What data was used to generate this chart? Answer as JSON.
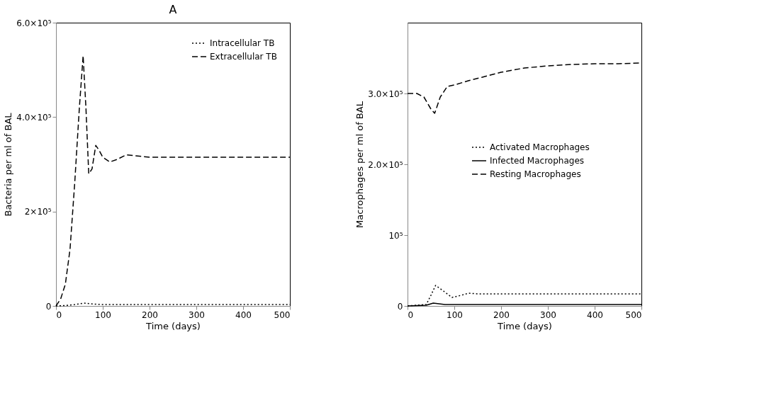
{
  "chart_data": [
    {
      "type": "line",
      "title": "A",
      "xlabel": "Time (days)",
      "ylabel": "Bacteria per ml of BAL",
      "xlim": [
        0,
        500
      ],
      "xticks": [
        0,
        100,
        200,
        300,
        400,
        500
      ],
      "ylim": [
        0,
        600000
      ],
      "yticks": [
        0,
        {
          "value": 200000,
          "label": "2×10⁵"
        },
        {
          "value": 400000,
          "label": "4.0×10⁵"
        },
        {
          "value": 600000,
          "label": "6.0×10⁵"
        }
      ],
      "grid": false,
      "legend": "top right",
      "marker": "none",
      "series": [
        {
          "name": "Intracellular TB",
          "color": "#000000",
          "line_style": "dotted",
          "x": [
            0,
            20,
            40,
            60,
            80,
            100,
            130,
            200,
            300,
            400,
            500
          ],
          "values": [
            0,
            1000,
            3000,
            6000,
            4000,
            3000,
            3000,
            3000,
            3000,
            3000,
            3000
          ]
        },
        {
          "name": "Extracellular TB",
          "color": "#000000",
          "line_style": "dashed",
          "x": [
            0,
            10,
            20,
            30,
            40,
            50,
            58,
            64,
            70,
            77,
            85,
            92,
            100,
            115,
            130,
            150,
            200,
            300,
            400,
            500
          ],
          "values": [
            0,
            15000,
            46000,
            120000,
            260000,
            420000,
            530000,
            420000,
            280000,
            290000,
            340000,
            330000,
            315000,
            305000,
            310000,
            320000,
            315000,
            315000,
            315000,
            315000
          ]
        }
      ]
    },
    {
      "type": "line",
      "xlabel": "Time (days)",
      "ylabel": "Macrophages per ml of BAL",
      "xlim": [
        0,
        500
      ],
      "xticks": [
        0,
        100,
        200,
        300,
        400,
        500
      ],
      "ylim": [
        0,
        400000
      ],
      "yticks": [
        0,
        {
          "value": 100000,
          "label": "10⁵"
        },
        {
          "value": 200000,
          "label": "2.0×10⁵"
        },
        {
          "value": 300000,
          "label": "3.0×10⁵"
        }
      ],
      "grid": false,
      "legend": "right",
      "marker": "none",
      "series": [
        {
          "name": "Activated Macrophages",
          "color": "#000000",
          "line_style": "dotted",
          "x": [
            0,
            40,
            50,
            60,
            75,
            95,
            115,
            130,
            150,
            200,
            300,
            400,
            500
          ],
          "values": [
            0,
            2000,
            15000,
            29000,
            22000,
            12000,
            15000,
            18000,
            17000,
            17000,
            17000,
            17000,
            17000
          ]
        },
        {
          "name": "Infected Macrophages",
          "color": "#000000",
          "line_style": "solid",
          "x": [
            0,
            40,
            55,
            80,
            100,
            200,
            300,
            400,
            500
          ],
          "values": [
            0,
            1000,
            4000,
            2000,
            2000,
            2000,
            2000,
            2000,
            2000
          ]
        },
        {
          "name": "Resting Macrophages",
          "color": "#000000",
          "line_style": "dashed",
          "x": [
            0,
            20,
            35,
            50,
            58,
            70,
            85,
            100,
            130,
            160,
            200,
            250,
            300,
            350,
            400,
            450,
            500
          ],
          "values": [
            300000,
            300000,
            295000,
            278000,
            272000,
            295000,
            310000,
            312000,
            318000,
            323000,
            330000,
            336000,
            339000,
            341000,
            342000,
            342000,
            343000
          ]
        }
      ]
    }
  ]
}
